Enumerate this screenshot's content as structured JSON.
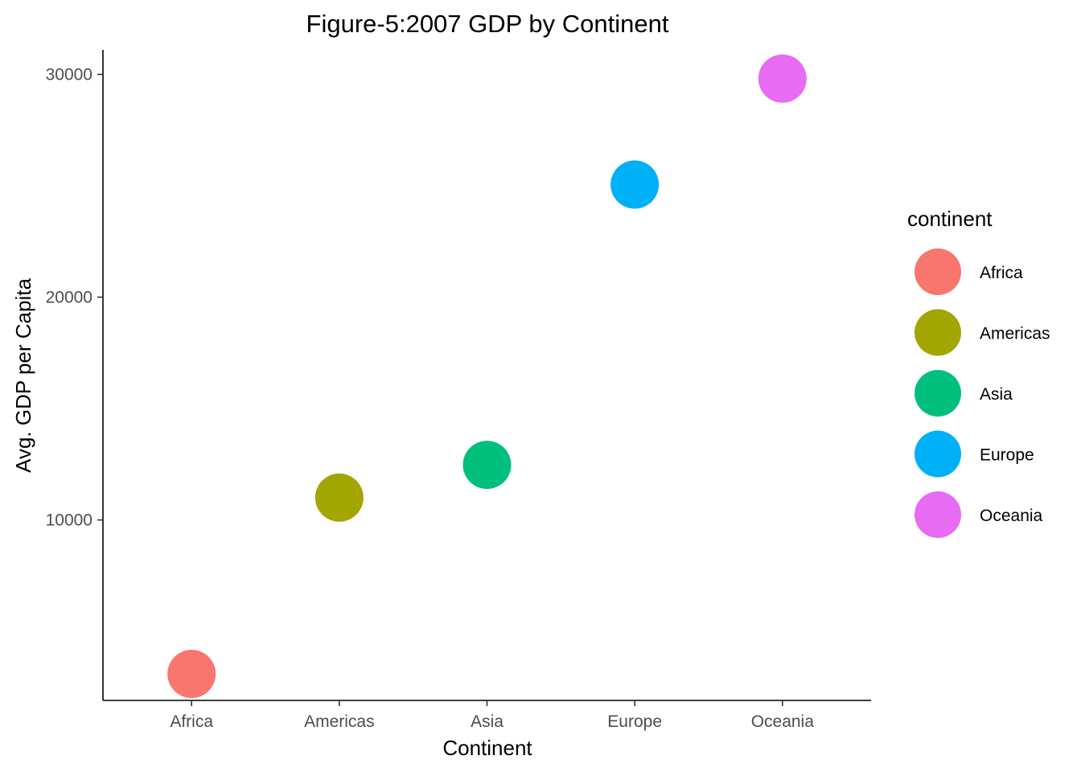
{
  "chart_data": {
    "type": "scatter",
    "title": "Figure-5:2007 GDP by Continent",
    "xlabel": "Continent",
    "ylabel": "Avg. GDP per Capita",
    "categories": [
      "Africa",
      "Americas",
      "Asia",
      "Europe",
      "Oceania"
    ],
    "values": [
      3089,
      11003,
      12473,
      25054,
      29810
    ],
    "colors": [
      "#F8766D",
      "#A3A500",
      "#00BF7D",
      "#00B0F6",
      "#E76BF3"
    ],
    "yticks": [
      10000,
      20000,
      30000
    ],
    "ylim": [
      1900,
      31100
    ],
    "grid": false,
    "legend": {
      "title": "continent",
      "position": "right",
      "entries": [
        "Africa",
        "Americas",
        "Asia",
        "Europe",
        "Oceania"
      ]
    }
  }
}
